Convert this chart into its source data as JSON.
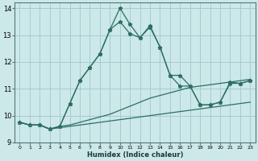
{
  "xlabel": "Humidex (Indice chaleur)",
  "bg_color": "#cce8e8",
  "grid_color": "#a0c8c8",
  "line_color": "#2d6e62",
  "xlim": [
    -0.5,
    23.5
  ],
  "ylim": [
    9,
    14.2
  ],
  "yticks": [
    9,
    10,
    11,
    12,
    13,
    14
  ],
  "xticks": [
    0,
    1,
    2,
    3,
    4,
    5,
    6,
    7,
    8,
    9,
    10,
    11,
    12,
    13,
    14,
    15,
    16,
    17,
    18,
    19,
    20,
    21,
    22,
    23
  ],
  "line1_x": [
    0,
    1,
    2,
    3,
    4,
    5,
    6,
    7,
    8,
    9,
    10,
    11,
    12,
    13,
    14,
    15,
    16,
    17,
    18,
    19,
    20,
    21,
    22,
    23
  ],
  "line1_y": [
    9.75,
    9.65,
    9.65,
    9.5,
    9.55,
    9.6,
    9.65,
    9.7,
    9.75,
    9.8,
    9.85,
    9.9,
    9.95,
    10.0,
    10.05,
    10.1,
    10.15,
    10.2,
    10.25,
    10.3,
    10.35,
    10.4,
    10.45,
    10.5
  ],
  "line2_x": [
    0,
    1,
    2,
    3,
    4,
    5,
    6,
    7,
    8,
    9,
    10,
    11,
    12,
    13,
    14,
    15,
    16,
    17,
    18,
    19,
    20,
    21,
    22,
    23
  ],
  "line2_y": [
    9.75,
    9.65,
    9.65,
    9.5,
    9.6,
    9.65,
    9.75,
    9.85,
    9.95,
    10.05,
    10.2,
    10.35,
    10.5,
    10.65,
    10.75,
    10.85,
    10.95,
    11.05,
    11.1,
    11.15,
    11.2,
    11.25,
    11.3,
    11.35
  ],
  "line3_x": [
    0,
    1,
    2,
    3,
    4,
    5,
    6,
    7,
    8,
    9,
    10,
    11,
    12,
    13,
    14,
    15,
    16,
    17,
    18,
    19,
    20,
    21,
    22,
    23
  ],
  "line3_y": [
    9.75,
    9.65,
    9.65,
    9.5,
    9.6,
    10.45,
    11.3,
    11.8,
    12.3,
    13.2,
    14.0,
    13.4,
    12.9,
    13.35,
    12.55,
    11.5,
    11.5,
    11.1,
    10.4,
    10.4,
    10.5,
    11.25,
    11.2,
    11.3
  ],
  "line4_x": [
    0,
    1,
    2,
    3,
    4,
    5,
    6,
    7,
    8,
    9,
    10,
    11,
    12,
    13,
    14,
    15,
    16,
    17,
    18,
    19,
    20,
    21,
    22,
    23
  ],
  "line4_y": [
    9.75,
    9.65,
    9.65,
    9.5,
    9.6,
    10.45,
    11.3,
    11.8,
    12.3,
    13.2,
    13.5,
    13.05,
    12.9,
    13.3,
    12.55,
    11.5,
    11.1,
    11.1,
    10.4,
    10.4,
    10.5,
    11.2,
    11.2,
    11.3
  ]
}
